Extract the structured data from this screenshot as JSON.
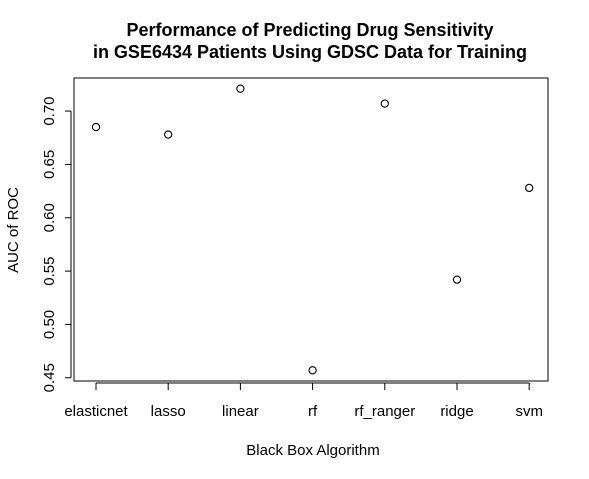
{
  "chart_data": {
    "type": "scatter",
    "title_lines": [
      "Performance of Predicting Drug Sensitivity",
      "in GSE6434 Patients Using GDSC Data for Training"
    ],
    "xlabel": "Black Box Algorithm",
    "ylabel": "AUC of ROC",
    "categories": [
      "elasticnet",
      "lasso",
      "linear",
      "rf",
      "rf_ranger",
      "ridge",
      "svm"
    ],
    "values": [
      0.685,
      0.678,
      0.721,
      0.457,
      0.707,
      0.542,
      0.628
    ],
    "y_ticks": [
      0.45,
      0.5,
      0.55,
      0.6,
      0.65,
      0.7
    ],
    "y_tick_labels": [
      "0.45",
      "0.50",
      "0.55",
      "0.60",
      "0.65",
      "0.70"
    ],
    "ylim": [
      0.447,
      0.731
    ],
    "grid": false,
    "legend": "none",
    "colors": {
      "marker": "#000000",
      "axes": "#000000",
      "background": "#ffffff"
    }
  }
}
